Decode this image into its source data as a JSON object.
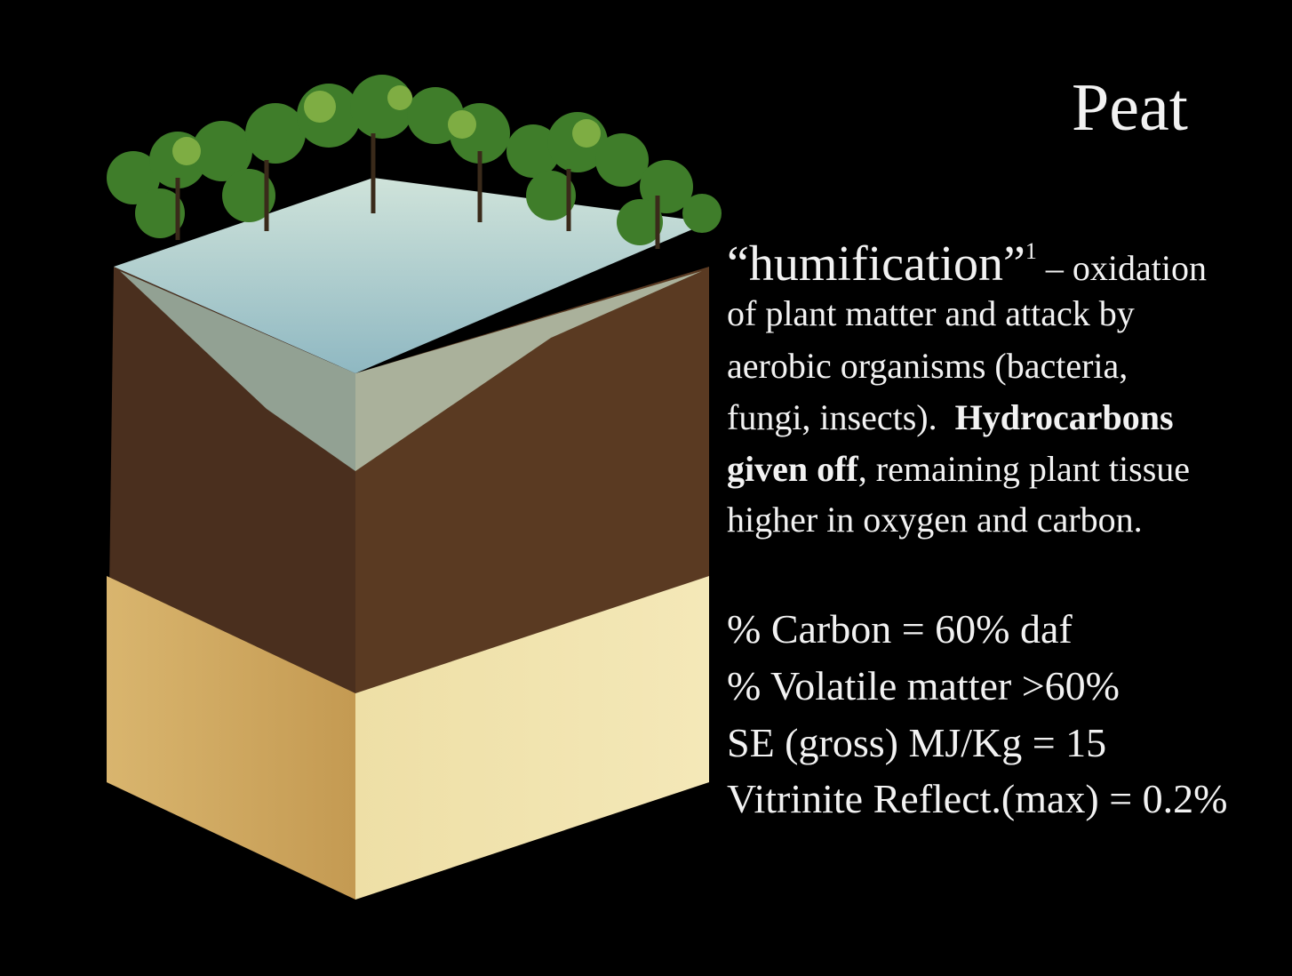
{
  "title": "Peat",
  "description": {
    "term": "“humification”",
    "footnote": "1",
    "lines": [
      [
        {
          "text": " – oxidation",
          "bold": false
        }
      ],
      [
        {
          "text": "of plant matter and attack by",
          "bold": false
        }
      ],
      [
        {
          "text": "aerobic organisms (bacteria,",
          "bold": false
        }
      ],
      [
        {
          "text": "fungi, insects).  ",
          "bold": false
        },
        {
          "text": "Hydrocarbons",
          "bold": true
        }
      ],
      [
        {
          "text": "given off",
          "bold": true
        },
        {
          "text": ", remaining plant tissue",
          "bold": false
        }
      ],
      [
        {
          "text": "higher in oxygen and carbon.",
          "bold": false
        }
      ]
    ]
  },
  "properties": [
    "% Carbon = 60% daf",
    "% Volatile matter >60%",
    "SE (gross) MJ/Kg = 15",
    "Vitrinite Reflect.(max) = 0.2%"
  ]
}
